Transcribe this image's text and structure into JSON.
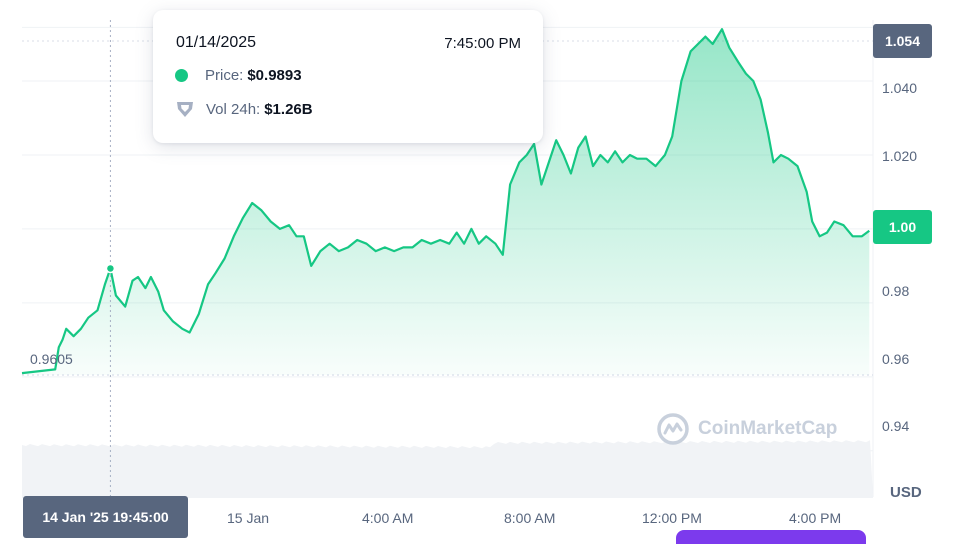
{
  "chart_data": {
    "type": "line",
    "title": "",
    "xlabel": "",
    "ylabel": "",
    "currency": "USD",
    "ylim": [
      0.9275,
      1.0565
    ],
    "y_ticks": [
      "1.040",
      "1.020",
      "0.98",
      "0.96",
      "0.94"
    ],
    "y_tick_values": [
      1.04,
      1.02,
      0.98,
      0.96,
      0.94
    ],
    "x_ticks": [
      "15 Jan",
      "4:00 AM",
      "8:00 AM",
      "12:00 PM",
      "4:00 PM"
    ],
    "x_tick_hours": [
      4.25,
      8.25,
      12.25,
      16.25,
      20.25
    ],
    "x_range_hours": [
      -0.5,
      22.6
    ],
    "series": [
      {
        "color": "#16c784",
        "points": [
          [
            -0.5,
            0.961
          ],
          [
            0.4,
            0.962
          ],
          [
            0.5,
            0.968
          ],
          [
            0.6,
            0.97
          ],
          [
            0.7,
            0.973
          ],
          [
            0.9,
            0.971
          ],
          [
            1.1,
            0.973
          ],
          [
            1.3,
            0.976
          ],
          [
            1.55,
            0.978
          ],
          [
            1.75,
            0.985
          ],
          [
            1.9,
            0.9893
          ],
          [
            2.05,
            0.982
          ],
          [
            2.3,
            0.979
          ],
          [
            2.5,
            0.986
          ],
          [
            2.65,
            0.987
          ],
          [
            2.85,
            0.984
          ],
          [
            3.0,
            0.987
          ],
          [
            3.2,
            0.983
          ],
          [
            3.35,
            0.978
          ],
          [
            3.6,
            0.975
          ],
          [
            3.85,
            0.973
          ],
          [
            4.05,
            0.972
          ],
          [
            4.3,
            0.977
          ],
          [
            4.55,
            0.985
          ],
          [
            4.75,
            0.988
          ],
          [
            5.0,
            0.992
          ],
          [
            5.25,
            0.998
          ],
          [
            5.5,
            1.003
          ],
          [
            5.75,
            1.007
          ],
          [
            6.0,
            1.005
          ],
          [
            6.25,
            1.002
          ],
          [
            6.5,
            1.0
          ],
          [
            6.75,
            1.001
          ],
          [
            6.95,
            0.998
          ],
          [
            7.15,
            0.998
          ],
          [
            7.35,
            0.99
          ],
          [
            7.6,
            0.994
          ],
          [
            7.85,
            0.996
          ],
          [
            8.1,
            0.994
          ],
          [
            8.35,
            0.995
          ],
          [
            8.6,
            0.997
          ],
          [
            8.85,
            0.996
          ],
          [
            9.1,
            0.994
          ],
          [
            9.35,
            0.995
          ],
          [
            9.6,
            0.994
          ],
          [
            9.85,
            0.995
          ],
          [
            10.1,
            0.995
          ],
          [
            10.35,
            0.997
          ],
          [
            10.6,
            0.996
          ],
          [
            10.85,
            0.997
          ],
          [
            11.1,
            0.996
          ],
          [
            11.3,
            0.999
          ],
          [
            11.5,
            0.996
          ],
          [
            11.7,
            1.0
          ],
          [
            11.9,
            0.996
          ],
          [
            12.1,
            0.998
          ],
          [
            12.35,
            0.996
          ],
          [
            12.55,
            0.993
          ],
          [
            12.75,
            1.012
          ],
          [
            13.0,
            1.018
          ],
          [
            13.2,
            1.02
          ],
          [
            13.4,
            1.023
          ],
          [
            13.6,
            1.012
          ],
          [
            13.8,
            1.018
          ],
          [
            14.0,
            1.024
          ],
          [
            14.2,
            1.02
          ],
          [
            14.4,
            1.015
          ],
          [
            14.6,
            1.022
          ],
          [
            14.8,
            1.025
          ],
          [
            15.0,
            1.017
          ],
          [
            15.2,
            1.02
          ],
          [
            15.4,
            1.018
          ],
          [
            15.6,
            1.021
          ],
          [
            15.8,
            1.018
          ],
          [
            16.0,
            1.02
          ],
          [
            16.2,
            1.019
          ],
          [
            16.45,
            1.019
          ],
          [
            16.7,
            1.017
          ],
          [
            16.95,
            1.02
          ],
          [
            17.15,
            1.025
          ],
          [
            17.4,
            1.04
          ],
          [
            17.65,
            1.048
          ],
          [
            17.85,
            1.05
          ],
          [
            18.05,
            1.052
          ],
          [
            18.25,
            1.05
          ],
          [
            18.5,
            1.054
          ],
          [
            18.7,
            1.049
          ],
          [
            18.95,
            1.045
          ],
          [
            19.15,
            1.042
          ],
          [
            19.35,
            1.04
          ],
          [
            19.55,
            1.035
          ],
          [
            19.75,
            1.026
          ],
          [
            19.9,
            1.018
          ],
          [
            20.1,
            1.02
          ],
          [
            20.3,
            1.019
          ],
          [
            20.55,
            1.017
          ],
          [
            20.8,
            1.01
          ],
          [
            20.95,
            1.002
          ],
          [
            21.15,
            0.998
          ],
          [
            21.35,
            0.999
          ],
          [
            21.55,
            1.002
          ],
          [
            21.8,
            1.001
          ],
          [
            22.05,
            0.998
          ],
          [
            22.3,
            0.998
          ],
          [
            22.5,
            0.9995
          ]
        ]
      }
    ],
    "tooltip": {
      "date": "01/14/2025",
      "time": "7:45:00 PM",
      "price_label": "Price:",
      "price_value": "$0.9893",
      "volume_label": "Vol 24h:",
      "volume_value": "$1.26B",
      "hover_hour": 1.9
    },
    "high_badge": "1.054",
    "current_badge": "1.00",
    "low_label": "0.9605",
    "x_badge": "14 Jan '25 19:45:00",
    "watermark": "CoinMarketCap",
    "grid": true
  }
}
